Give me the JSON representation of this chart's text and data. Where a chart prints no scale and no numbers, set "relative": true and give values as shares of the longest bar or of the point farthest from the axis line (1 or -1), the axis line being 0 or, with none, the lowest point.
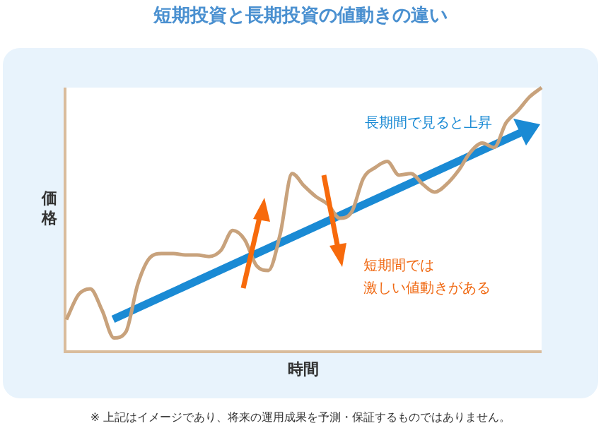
{
  "chart_data": {
    "type": "line",
    "title": "短期投資と長期投資の値動きの違い",
    "xlabel": "時間",
    "ylabel": "価格",
    "relative": true,
    "tick_labels": false,
    "categories": [
      null,
      null,
      null,
      null,
      null,
      null,
      null,
      null,
      null,
      null,
      null,
      null,
      null,
      null,
      null,
      null,
      null,
      null,
      null,
      null,
      null,
      null,
      null,
      null,
      null,
      null,
      null,
      null,
      null,
      null,
      null,
      null,
      null,
      null,
      null,
      null,
      null,
      null,
      null,
      null,
      null
    ],
    "series": [
      {
        "color": "#c8a27c",
        "values": [
          0.117,
          0.211,
          0.234,
          0.152,
          0.047,
          0.07,
          0.251,
          0.351,
          0.368,
          0.368,
          0.363,
          0.363,
          0.357,
          0.38,
          0.456,
          0.421,
          0.322,
          0.304,
          0.444,
          0.673,
          0.626,
          0.585,
          0.556,
          0.503,
          0.526,
          0.655,
          0.696,
          0.719,
          0.667,
          0.673,
          0.632,
          0.602,
          0.632,
          0.684,
          0.754,
          0.789,
          0.772,
          0.865,
          0.912,
          0.965,
          1
        ]
      }
    ],
    "annotations": [
      "長期間で見ると上昇",
      "短期間では",
      "激しい値動きがある",
      "※ 上記はイメージであり、将来の運用成果を予測・保証するものではありません。"
    ]
  }
}
